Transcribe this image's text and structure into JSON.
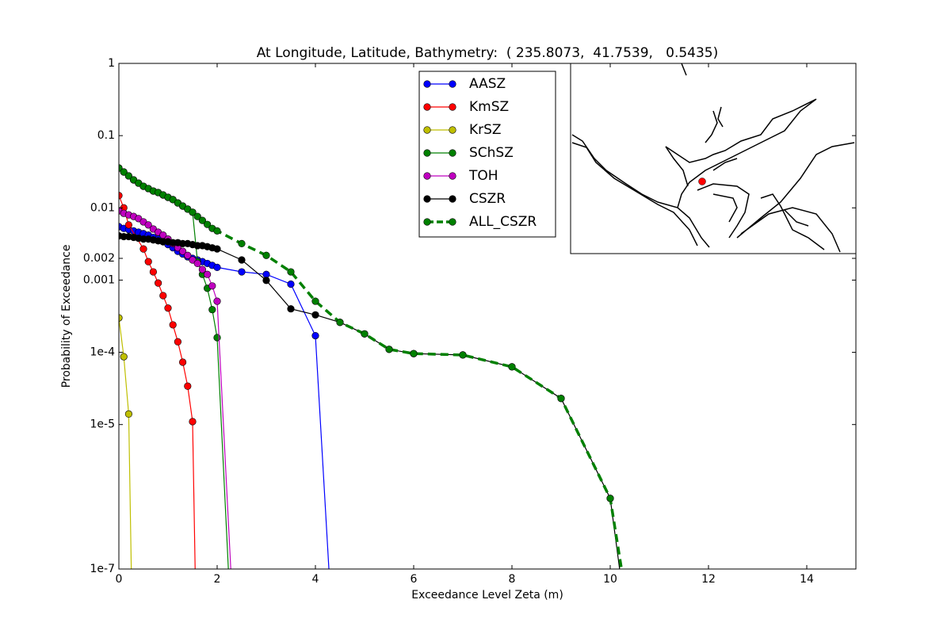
{
  "chart_data": {
    "type": "line",
    "title": "At Longitude, Latitude, Bathymetry:  ( 235.8073,  41.7539,   0.5435)",
    "xlabel": "Exceedance Level Zeta (m)",
    "ylabel": "Probability of Exceedance",
    "xlim": [
      0,
      15
    ],
    "xticks": [
      0,
      2,
      4,
      6,
      8,
      10,
      12,
      14
    ],
    "ylim": [
      1e-07,
      1
    ],
    "ylog": true,
    "yticks": [
      1,
      0.1,
      0.01,
      0.002,
      0.001,
      {
        "value": 0.0001,
        "label": "1e-4"
      },
      {
        "value": 1e-05,
        "label": "1e-5"
      },
      {
        "value": 1e-07,
        "label": "1e-7"
      }
    ],
    "grid": false,
    "legend": "upper center",
    "series": [
      {
        "name": "AASZ",
        "color": "#0000ff",
        "x": [
          0,
          0.1,
          0.2,
          0.3,
          0.4,
          0.5,
          0.6,
          0.7,
          0.8,
          0.9,
          1.0,
          1.1,
          1.2,
          1.3,
          1.4,
          1.5,
          1.6,
          1.7,
          1.8,
          1.9,
          2.0,
          2.5,
          3.0,
          3.5,
          4.0,
          4.3
        ],
        "values": [
          0.0055,
          0.0052,
          0.005,
          0.0048,
          0.0046,
          0.0044,
          0.0042,
          0.0039,
          0.0037,
          0.0034,
          0.0031,
          0.0028,
          0.0025,
          0.0023,
          0.0021,
          0.002,
          0.0019,
          0.0018,
          0.0017,
          0.0016,
          0.0015,
          0.0013,
          0.0012,
          0.00088,
          0.00017,
          5e-08
        ]
      },
      {
        "name": "KmSZ",
        "color": "#ff0000",
        "x": [
          0,
          0.1,
          0.2,
          0.5,
          0.6,
          0.7,
          0.8,
          0.9,
          1.0,
          1.1,
          1.2,
          1.3,
          1.4,
          1.5,
          1.56
        ],
        "values": [
          0.0148,
          0.01,
          0.0058,
          0.0027,
          0.0018,
          0.0013,
          0.00091,
          0.00061,
          0.00041,
          0.00024,
          0.00014,
          7.3e-05,
          3.4e-05,
          1.1e-05,
          5e-08
        ]
      },
      {
        "name": "KrSZ",
        "color": "#bfbf00",
        "x": [
          0,
          0.1,
          0.2,
          0.26
        ],
        "values": [
          0.0003,
          8.7e-05,
          1.4e-05,
          5e-08
        ]
      },
      {
        "name": "SChSZ",
        "color": "#008000",
        "x": [
          0,
          0.1,
          0.2,
          0.3,
          0.4,
          0.5,
          0.6,
          0.7,
          0.8,
          0.9,
          1.0,
          1.1,
          1.2,
          1.3,
          1.4,
          1.5,
          1.6,
          1.7,
          1.8,
          1.9,
          2.0,
          2.25
        ],
        "values": [
          0.0356,
          0.0314,
          0.0277,
          0.0244,
          0.022,
          0.0199,
          0.0185,
          0.0171,
          0.0163,
          0.0151,
          0.014,
          0.013,
          0.0117,
          0.0106,
          0.0096,
          0.0087,
          0.0018,
          0.0012,
          0.00077,
          0.00039,
          0.00016,
          5e-08
        ]
      },
      {
        "name": "TOH",
        "color": "#bf00bf",
        "x": [
          0,
          0.1,
          0.2,
          0.3,
          0.4,
          0.5,
          0.6,
          0.7,
          0.8,
          0.9,
          1.0,
          1.1,
          1.2,
          1.3,
          1.4,
          1.5,
          1.6,
          1.7,
          1.8,
          1.9,
          2.0,
          2.3
        ],
        "values": [
          0.0091,
          0.0084,
          0.008,
          0.0076,
          0.0071,
          0.0064,
          0.0058,
          0.0051,
          0.0046,
          0.0042,
          0.0037,
          0.0032,
          0.0028,
          0.0025,
          0.0022,
          0.0019,
          0.0017,
          0.0014,
          0.0012,
          0.00083,
          0.00051,
          5e-08
        ]
      },
      {
        "name": "CSZR",
        "color": "#000000",
        "x": [
          0,
          0.1,
          0.2,
          0.3,
          0.4,
          0.5,
          0.6,
          0.7,
          0.8,
          0.9,
          1.0,
          1.1,
          1.2,
          1.3,
          1.4,
          1.5,
          1.6,
          1.7,
          1.8,
          1.9,
          2.0,
          2.5,
          3.0,
          3.5,
          4.0,
          4.5,
          5.0,
          5.5,
          6.0,
          7.0,
          8.0,
          9.0,
          10.0,
          10.25
        ],
        "values": [
          0.0041,
          0.004,
          0.004,
          0.0039,
          0.0038,
          0.0037,
          0.0037,
          0.0036,
          0.0035,
          0.0034,
          0.0034,
          0.0033,
          0.0033,
          0.0032,
          0.0032,
          0.0031,
          0.003,
          0.003,
          0.0029,
          0.0028,
          0.0027,
          0.0019,
          0.00099,
          0.0004,
          0.00033,
          0.00026,
          0.00018,
          0.00011,
          9.6e-05,
          9.2e-05,
          6.3e-05,
          2.3e-05,
          9.5e-07,
          5e-08
        ]
      },
      {
        "name": "ALL_CSZR",
        "color": "#008000",
        "linestyle": "dashed",
        "x": [
          0,
          0.1,
          0.2,
          0.3,
          0.4,
          0.5,
          0.6,
          0.7,
          0.8,
          0.9,
          1.0,
          1.1,
          1.2,
          1.3,
          1.4,
          1.5,
          1.6,
          1.7,
          1.8,
          1.9,
          2.0,
          2.5,
          3.0,
          3.5,
          4.0,
          4.5,
          5.0,
          5.5,
          6.0,
          7.0,
          8.0,
          9.0,
          10.0,
          10.3
        ],
        "values": [
          0.0356,
          0.0314,
          0.0277,
          0.0244,
          0.022,
          0.0199,
          0.0185,
          0.0171,
          0.0163,
          0.0151,
          0.014,
          0.013,
          0.0117,
          0.0106,
          0.0096,
          0.0087,
          0.0076,
          0.0067,
          0.0059,
          0.0052,
          0.0048,
          0.0032,
          0.0022,
          0.0013,
          0.00051,
          0.00026,
          0.00018,
          0.00011,
          9.6e-05,
          9.2e-05,
          6.3e-05,
          2.3e-05,
          9.5e-07,
          5e-08
        ]
      }
    ]
  }
}
